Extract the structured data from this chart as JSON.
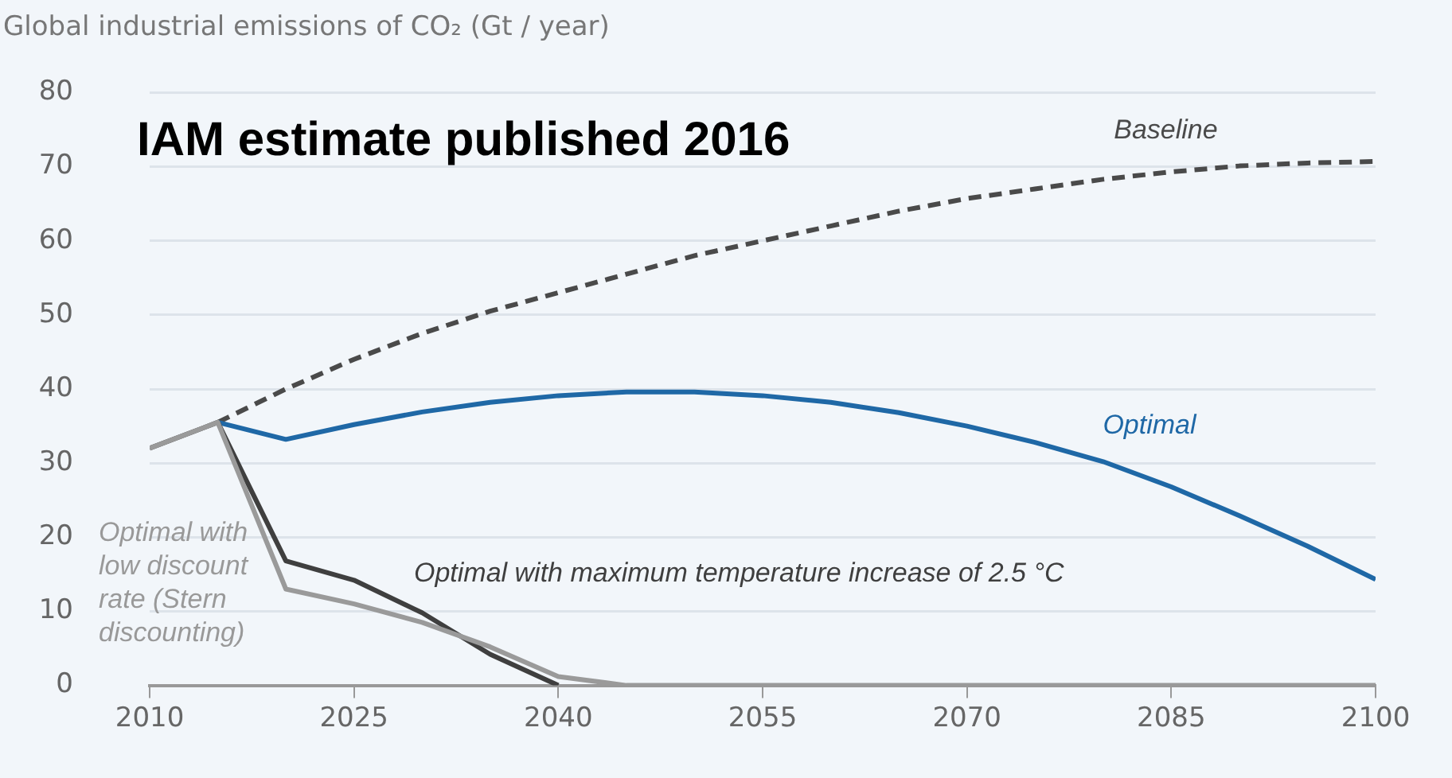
{
  "chart_data": {
    "type": "line",
    "title": "IAM estimate published 2016",
    "ylabel": "Global industrial emissions of CO₂ (Gt / year)",
    "x": [
      2010,
      2015,
      2020,
      2025,
      2030,
      2035,
      2040,
      2045,
      2050,
      2055,
      2060,
      2065,
      2070,
      2075,
      2080,
      2085,
      2090,
      2095,
      2100
    ],
    "series": [
      {
        "name": "Baseline",
        "color": "#4a4a4a",
        "line_style": "dashed",
        "values": [
          null,
          35.5,
          40,
          44,
          47.5,
          50.5,
          53,
          55.5,
          58,
          60,
          62,
          64,
          65.7,
          67,
          68.3,
          69.3,
          70.1,
          70.5,
          70.7
        ]
      },
      {
        "name": "Optimal",
        "color": "#1f68a6",
        "values": [
          null,
          35.5,
          33.2,
          35.2,
          36.9,
          38.2,
          39.1,
          39.6,
          39.6,
          39.1,
          38.2,
          36.8,
          35,
          32.8,
          30.2,
          26.8,
          22.9,
          18.8,
          14.3
        ]
      },
      {
        "name": "Optimal with maximum temperature increase of 2.5 °C",
        "color": "#3f3f3f",
        "values": [
          32,
          35.5,
          16.8,
          14.2,
          9.8,
          4.2,
          0,
          null,
          null,
          null,
          null,
          null,
          null,
          null,
          null,
          null,
          null,
          null,
          null
        ]
      },
      {
        "name": "Optimal with low discount rate (Stern discounting)",
        "color": "#9a9a9a",
        "values": [
          32,
          35.5,
          13,
          11,
          8.5,
          5.2,
          1.2,
          0,
          0,
          0,
          0,
          0,
          0,
          0,
          0,
          0,
          0,
          0,
          0
        ]
      }
    ],
    "xlim": [
      2010,
      2100
    ],
    "xticks": [
      2010,
      2025,
      2040,
      2055,
      2070,
      2085,
      2100
    ],
    "ylim": [
      0,
      80
    ],
    "yticks": [
      0,
      10,
      20,
      30,
      40,
      50,
      60,
      70,
      80
    ],
    "grid": "y",
    "legend": false,
    "marker": "none",
    "line_style": "solid"
  }
}
